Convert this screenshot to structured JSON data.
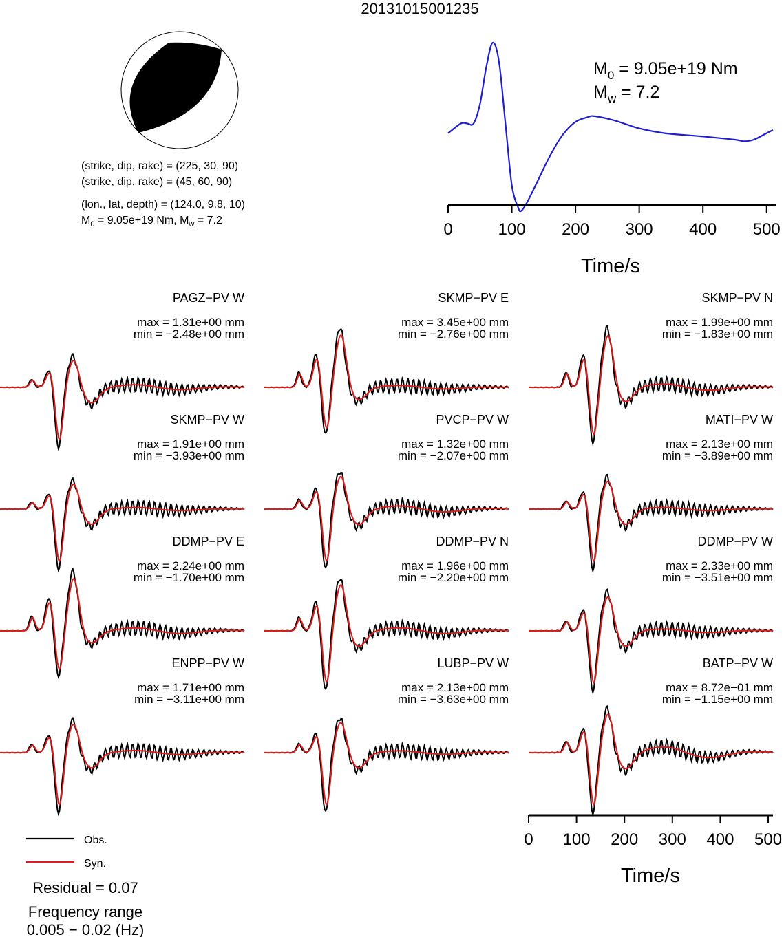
{
  "title": "20131015001235",
  "colors": {
    "obs": "#000000",
    "syn": "#dd1c1c",
    "stf": "#1f1fd0"
  },
  "focal_mechanism": {
    "icon": "beachball-icon",
    "plane1": "(strike, dip, rake) = (225, 30, 90)",
    "plane2": "(strike, dip, rake) = (45, 60, 90)",
    "location": "(lon., lat, depth) = (124.0, 9.8, 10)",
    "moment_line": {
      "m0_value": "9.05e+19 Nm",
      "sep": ", ",
      "mw_value": "7.2"
    }
  },
  "chart_data": [
    {
      "type": "line",
      "name": "source-time-function",
      "x": [
        0,
        20,
        30,
        40,
        50,
        60,
        70,
        80,
        90,
        100,
        110,
        115,
        125,
        140,
        160,
        180,
        200,
        220,
        230,
        260,
        300,
        340,
        400,
        450,
        465,
        480,
        500,
        510
      ],
      "y": [
        0.44,
        0.5,
        0.5,
        0.5,
        0.62,
        0.85,
        1.0,
        0.88,
        0.5,
        0.12,
        -0.02,
        -0.04,
        0.02,
        0.14,
        0.3,
        0.43,
        0.51,
        0.54,
        0.545,
        0.52,
        0.47,
        0.44,
        0.42,
        0.4,
        0.39,
        0.4,
        0.44,
        0.46
      ],
      "xlim": [
        0,
        510
      ],
      "xticks": [
        "0",
        "100",
        "200",
        "300",
        "400",
        "500"
      ],
      "xlabel": "Time/s",
      "moment": {
        "m0_value": "9.05e+19 Nm",
        "mw_value": "7.2"
      }
    },
    {
      "type": "line",
      "name": "waveform-fits",
      "xlim": [
        0,
        510
      ],
      "xticks": [
        "0",
        "100",
        "200",
        "300",
        "400",
        "500"
      ],
      "xlabel": "Time/s",
      "legend": {
        "obs": "Obs.",
        "syn": "Syn.",
        "position": "bottom-left"
      },
      "stations": [
        {
          "label": "PAGZ−PV W",
          "max": "max = 1.31e+00 mm",
          "min": "min = −2.48e+00 mm",
          "amp_max": 1.31,
          "amp_min": -2.48
        },
        {
          "label": "SKMP−PV E",
          "max": "max = 3.45e+00 mm",
          "min": "min = −2.76e+00 mm",
          "amp_max": 3.45,
          "amp_min": -2.76
        },
        {
          "label": "SKMP−PV N",
          "max": "max = 1.99e+00 mm",
          "min": "min = −1.83e+00 mm",
          "amp_max": 1.99,
          "amp_min": -1.83
        },
        {
          "label": "SKMP−PV W",
          "max": "max = 1.91e+00 mm",
          "min": "min = −3.93e+00 mm",
          "amp_max": 1.91,
          "amp_min": -3.93
        },
        {
          "label": "PVCP−PV W",
          "max": "max = 1.32e+00 mm",
          "min": "min = −2.07e+00 mm",
          "amp_max": 1.32,
          "amp_min": -2.07
        },
        {
          "label": "MATI−PV W",
          "max": "max = 2.13e+00 mm",
          "min": "min = −3.89e+00 mm",
          "amp_max": 2.13,
          "amp_min": -3.89
        },
        {
          "label": "DDMP−PV E",
          "max": "max = 2.24e+00 mm",
          "min": "min = −1.70e+00 mm",
          "amp_max": 2.24,
          "amp_min": -1.7
        },
        {
          "label": "DDMP−PV N",
          "max": "max = 1.96e+00 mm",
          "min": "min = −2.20e+00 mm",
          "amp_max": 1.96,
          "amp_min": -2.2
        },
        {
          "label": "DDMP−PV W",
          "max": "max = 2.33e+00 mm",
          "min": "min = −3.51e+00 mm",
          "amp_max": 2.33,
          "amp_min": -3.51
        },
        {
          "label": "ENPP−PV W",
          "max": "max = 1.71e+00 mm",
          "min": "min = −3.11e+00 mm",
          "amp_max": 1.71,
          "amp_min": -3.11
        },
        {
          "label": "LUBP−PV W",
          "max": "max = 2.13e+00 mm",
          "min": "min = −3.63e+00 mm",
          "amp_max": 2.13,
          "amp_min": -3.63
        },
        {
          "label": "BATP−PV W",
          "max": "max = 8.72e−01 mm",
          "min": "min = −1.15e+00 mm",
          "amp_max": 0.872,
          "amp_min": -1.15
        }
      ]
    }
  ],
  "footer": {
    "residual": "Residual = 0.07",
    "freq_title": "Frequency range",
    "freq_value": "0.005 − 0.02 (Hz)"
  }
}
